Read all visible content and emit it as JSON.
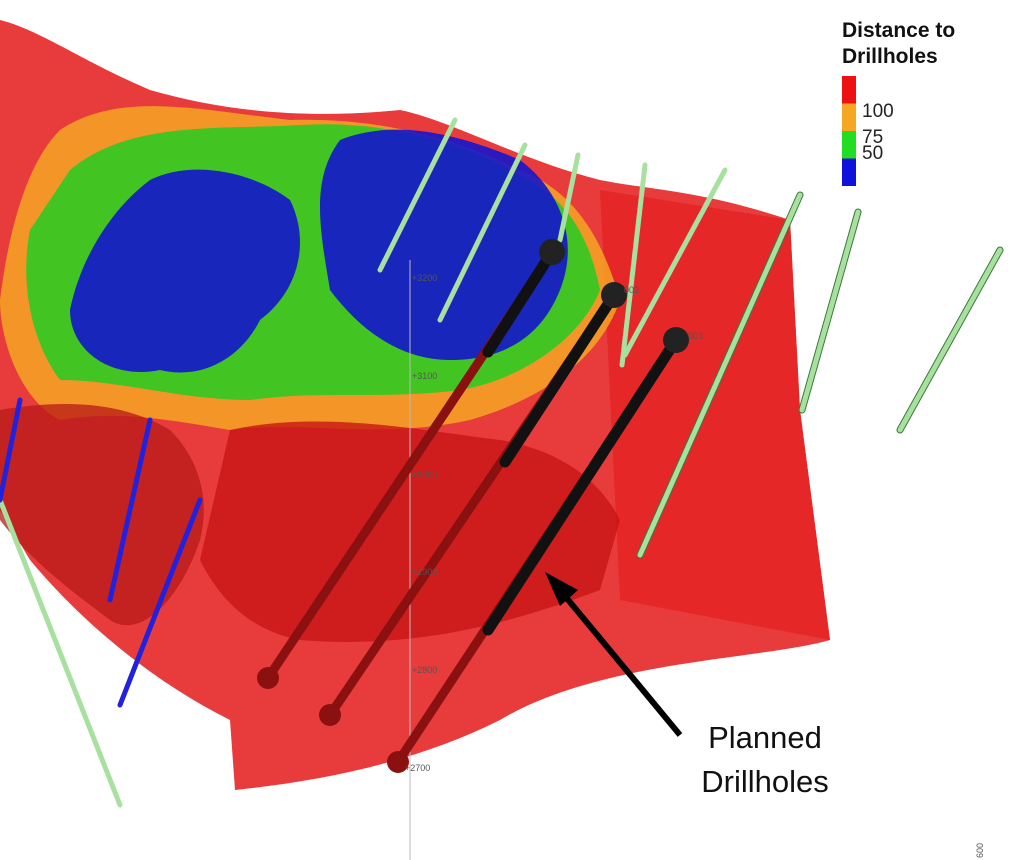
{
  "legend": {
    "title": [
      "Distance to",
      "Drillholes"
    ],
    "labels": [
      "100",
      "75",
      "50"
    ],
    "colors": [
      "#ee1111",
      "#f5a623",
      "#22dd22",
      "#1111dd"
    ]
  },
  "annotation": {
    "text": [
      "Planned",
      "Drillholes"
    ]
  },
  "elevation_labels": [
    "+3200",
    "+3100",
    "+3000",
    "+2900",
    "+2800",
    "+2700"
  ],
  "hole_labels": [
    "002",
    "003"
  ],
  "corner_label": "600"
}
